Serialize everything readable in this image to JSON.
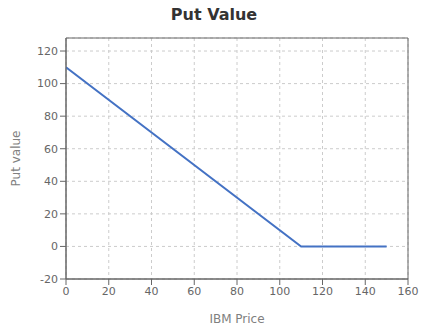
{
  "chart_data": {
    "type": "line",
    "title": "Put Value",
    "xlabel": "IBM Price",
    "ylabel": "Put value",
    "x": [
      0,
      110,
      150
    ],
    "values": [
      110,
      0,
      0
    ],
    "color": "#4472C4",
    "xlim": [
      0,
      160
    ],
    "ylim": [
      -20,
      128
    ],
    "xticks": [
      0,
      20,
      40,
      60,
      80,
      100,
      120,
      140,
      160
    ],
    "yticks": [
      -20,
      0,
      20,
      40,
      60,
      80,
      100,
      120
    ],
    "grid": true
  }
}
